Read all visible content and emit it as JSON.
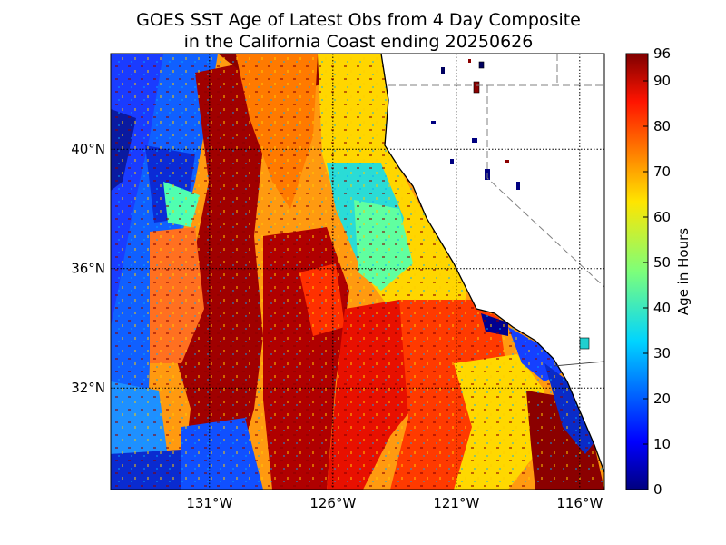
{
  "title": {
    "line1": "GOES SST Age of Latest Obs from 4 Day Composite",
    "line2": "in the California Coast ending 20250626"
  },
  "map": {
    "lon_range": [
      -135,
      -115
    ],
    "lat_range": [
      28.6,
      43.2
    ],
    "x_ticks": [
      {
        "lon": -131,
        "label": "131°W"
      },
      {
        "lon": -126,
        "label": "126°W"
      },
      {
        "lon": -121,
        "label": "121°W"
      },
      {
        "lon": -116,
        "label": "116°W"
      }
    ],
    "y_ticks": [
      {
        "lat": 40,
        "label": "40°N"
      },
      {
        "lat": 36,
        "label": "36°N"
      },
      {
        "lat": 32,
        "label": "32°N"
      }
    ],
    "land_color": "#ffffff",
    "gridlines": "dotted"
  },
  "colorbar": {
    "label": "Age in Hours",
    "min": 0,
    "max": 96,
    "ticks": [
      0,
      10,
      20,
      30,
      40,
      50,
      60,
      70,
      80,
      90,
      96
    ],
    "colormap": "jet"
  }
}
